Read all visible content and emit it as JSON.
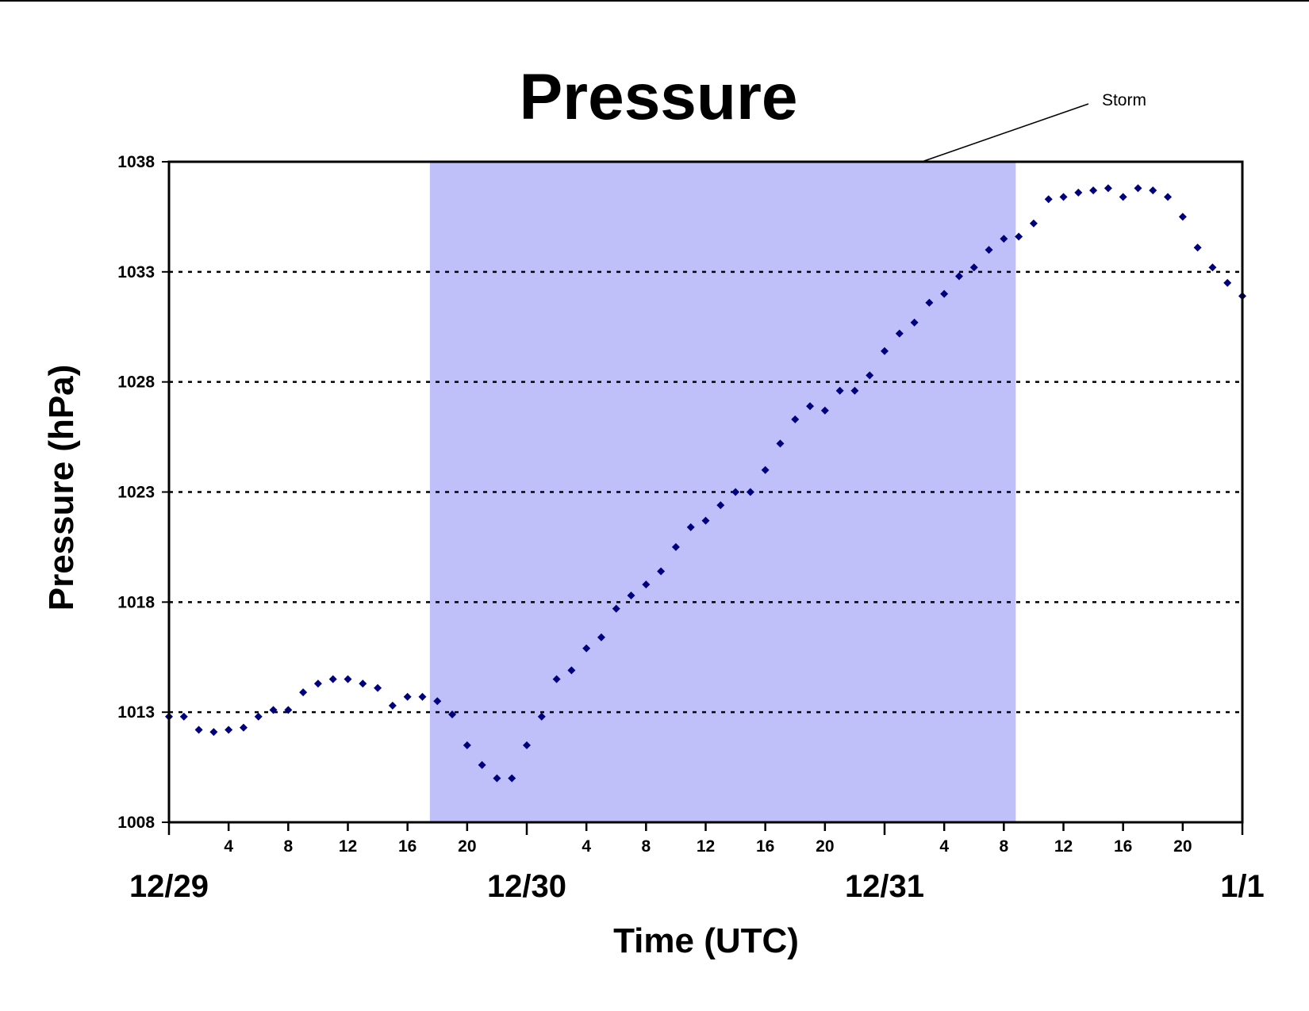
{
  "chart_data": {
    "type": "scatter",
    "title": "Pressure",
    "xlabel": "Time (UTC)",
    "ylabel": "Pressure (hPa)",
    "x_unit": "hour",
    "xlim": [
      0,
      72
    ],
    "ylim": [
      1008,
      1038
    ],
    "yticks": [
      1008,
      1013,
      1018,
      1023,
      1028,
      1033,
      1038
    ],
    "grid": "horizontal-dotted",
    "hour_ticks": [
      {
        "hour": 4,
        "label": "4"
      },
      {
        "hour": 8,
        "label": "8"
      },
      {
        "hour": 12,
        "label": "12"
      },
      {
        "hour": 16,
        "label": "16"
      },
      {
        "hour": 20,
        "label": "20"
      },
      {
        "hour": 28,
        "label": "4"
      },
      {
        "hour": 32,
        "label": "8"
      },
      {
        "hour": 36,
        "label": "12"
      },
      {
        "hour": 40,
        "label": "16"
      },
      {
        "hour": 44,
        "label": "20"
      },
      {
        "hour": 52,
        "label": "4"
      },
      {
        "hour": 56,
        "label": "8"
      },
      {
        "hour": 60,
        "label": "12"
      },
      {
        "hour": 64,
        "label": "16"
      },
      {
        "hour": 68,
        "label": "20"
      }
    ],
    "day_labels": [
      {
        "hour": 0,
        "label": "12/29"
      },
      {
        "hour": 24,
        "label": "12/30"
      },
      {
        "hour": 48,
        "label": "12/31"
      },
      {
        "hour": 72,
        "label": "1/1"
      }
    ],
    "shaded_region": {
      "from_hour": 17.5,
      "to_hour": 56.8,
      "color": "#bfbffa"
    },
    "annotation": {
      "text": "Storm",
      "hour": 50.5,
      "value": 1038
    },
    "marker_color": "#00007f",
    "series": [
      {
        "x": [
          0,
          1,
          2,
          3,
          4,
          5,
          6,
          7,
          8,
          9,
          10,
          11,
          12,
          13,
          14,
          15,
          16,
          17,
          18,
          19,
          20,
          21,
          22,
          23,
          24,
          25,
          26,
          27,
          28,
          29,
          30,
          31,
          32,
          33,
          34,
          35,
          36,
          37,
          38,
          39,
          40,
          41,
          42,
          43,
          44,
          45,
          46,
          47,
          48,
          49,
          50,
          51,
          52,
          53,
          54,
          55,
          56,
          57,
          58,
          59,
          60,
          61,
          62,
          63,
          64,
          65,
          66,
          67,
          68,
          69,
          70,
          71,
          72
        ],
        "values": [
          1012.8,
          1012.8,
          1012.2,
          1012.1,
          1012.2,
          1012.3,
          1012.8,
          1013.1,
          1013.1,
          1013.9,
          1014.3,
          1014.5,
          1014.5,
          1014.3,
          1014.1,
          1013.3,
          1013.7,
          1013.7,
          1013.5,
          1012.9,
          1011.5,
          1010.6,
          1010.0,
          1010.0,
          1011.5,
          1012.8,
          1014.5,
          1014.9,
          1015.9,
          1016.4,
          1017.7,
          1018.3,
          1018.8,
          1019.4,
          1020.5,
          1021.4,
          1021.7,
          1022.4,
          1023.0,
          1023.0,
          1024.0,
          1025.2,
          1026.3,
          1026.9,
          1026.7,
          1027.6,
          1027.6,
          1028.3,
          1029.4,
          1030.2,
          1030.7,
          1031.6,
          1032.0,
          1032.8,
          1033.2,
          1034.0,
          1034.5,
          1034.6,
          1035.2,
          1036.3,
          1036.4,
          1036.6,
          1036.7,
          1036.8,
          1036.4,
          1036.8,
          1036.7,
          1036.4,
          1035.5,
          1034.1,
          1033.2,
          1032.5,
          1031.9
        ]
      }
    ]
  }
}
